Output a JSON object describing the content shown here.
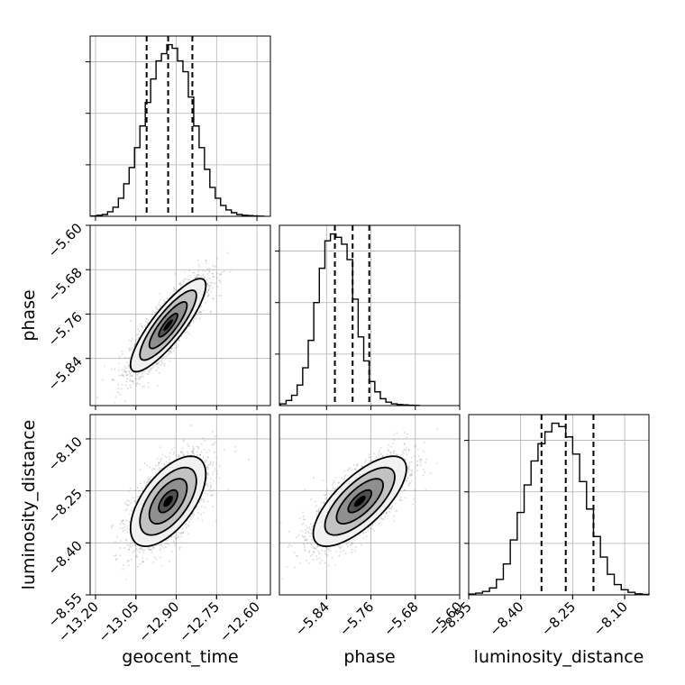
{
  "chart_data": {
    "type": "corner",
    "parameters": [
      {
        "key": "geocent_time",
        "label": "geocent_time",
        "range": [
          -13.22,
          -12.55
        ],
        "ticks": [
          -13.2,
          -13.05,
          -12.9,
          -12.75,
          -12.6
        ],
        "tick_labels": [
          "−13.20",
          "−13.05",
          "−12.90",
          "−12.75",
          "−12.60"
        ]
      },
      {
        "key": "phase",
        "label": "phase",
        "range": [
          -5.925,
          -5.6
        ],
        "ticks": [
          -5.84,
          -5.76,
          -5.68,
          -5.6
        ],
        "tick_labels": [
          "−5.84",
          "−5.76",
          "−5.68",
          "−5.60"
        ]
      },
      {
        "key": "luminosity_distance",
        "label": "luminosity_distance",
        "range": [
          -8.55,
          -8.03
        ],
        "ticks": [
          -8.55,
          -8.4,
          -8.25,
          -8.1
        ],
        "tick_labels": [
          "−8.55",
          "−8.40",
          "−8.25",
          "−8.10"
        ]
      }
    ],
    "histograms": [
      {
        "param": "geocent_time",
        "bin_centers": [
          -13.205,
          -13.185,
          -13.165,
          -13.145,
          -13.125,
          -13.105,
          -13.085,
          -13.065,
          -13.045,
          -13.025,
          -13.005,
          -12.985,
          -12.965,
          -12.945,
          -12.925,
          -12.905,
          -12.885,
          -12.865,
          -12.845,
          -12.825,
          -12.805,
          -12.785,
          -12.765,
          -12.745,
          -12.725,
          -12.705,
          -12.685,
          -12.665,
          -12.645,
          -12.625,
          -12.605,
          -12.585
        ],
        "counts": [
          0.2,
          0.6,
          1,
          2.5,
          5,
          10,
          18,
          27,
          38,
          50,
          63,
          76,
          86,
          90,
          95,
          93,
          86,
          80,
          66,
          50,
          38,
          26,
          16,
          10,
          6,
          3.5,
          2,
          1,
          0.6,
          0.4,
          0.2,
          0.1
        ],
        "quantiles": [
          -13.01,
          -12.93,
          -12.84
        ]
      },
      {
        "param": "phase",
        "bin_centers": [
          -5.918,
          -5.908,
          -5.898,
          -5.888,
          -5.878,
          -5.868,
          -5.858,
          -5.848,
          -5.838,
          -5.828,
          -5.818,
          -5.808,
          -5.798,
          -5.788,
          -5.778,
          -5.768,
          -5.758,
          -5.748,
          -5.738,
          -5.728,
          -5.718,
          -5.708,
          -5.698,
          -5.688,
          -5.678
        ],
        "counts": [
          1,
          3,
          6,
          12,
          22,
          38,
          60,
          80,
          96,
          100,
          98,
          94,
          85,
          62,
          40,
          26,
          14,
          8,
          4,
          2,
          1,
          0.6,
          0.4,
          0.2,
          0.1
        ],
        "quantiles": [
          -5.825,
          -5.793,
          -5.763
        ]
      },
      {
        "param": "luminosity_distance",
        "bin_centers": [
          -8.54,
          -8.52,
          -8.5,
          -8.48,
          -8.46,
          -8.44,
          -8.42,
          -8.4,
          -8.38,
          -8.36,
          -8.34,
          -8.32,
          -8.3,
          -8.28,
          -8.26,
          -8.24,
          -8.22,
          -8.2,
          -8.18,
          -8.16,
          -8.14,
          -8.12,
          -8.1,
          -8.08,
          -8.06,
          -8.04
        ],
        "counts": [
          0.5,
          1,
          2,
          4,
          9,
          18,
          32,
          48,
          64,
          78,
          88,
          95,
          100,
          98,
          92,
          82,
          66,
          50,
          34,
          22,
          12,
          6,
          3,
          1.5,
          0.6,
          0.3
        ],
        "quantiles": [
          -8.34,
          -8.27,
          -8.19
        ]
      }
    ],
    "joint": [
      {
        "x": "geocent_time",
        "y": "phase",
        "mean": [
          -12.93,
          -5.78
        ],
        "sd": [
          0.07,
          0.042
        ],
        "corr": 0.85,
        "n_samples": 2500
      },
      {
        "x": "geocent_time",
        "y": "luminosity_distance",
        "mean": [
          -12.93,
          -8.28
        ],
        "sd": [
          0.07,
          0.065
        ],
        "corr": 0.6,
        "n_samples": 2500
      },
      {
        "x": "phase",
        "y": "luminosity_distance",
        "mean": [
          -5.78,
          -8.28
        ],
        "sd": [
          0.042,
          0.065
        ],
        "corr": 0.72,
        "n_samples": 2500
      }
    ],
    "contour_sigma_levels": [
      0.5,
      1.0,
      1.5,
      2.0
    ],
    "grid": true,
    "colors": {
      "line": "#000000",
      "grid": "#b0b0b0",
      "samples": "#808080"
    }
  }
}
